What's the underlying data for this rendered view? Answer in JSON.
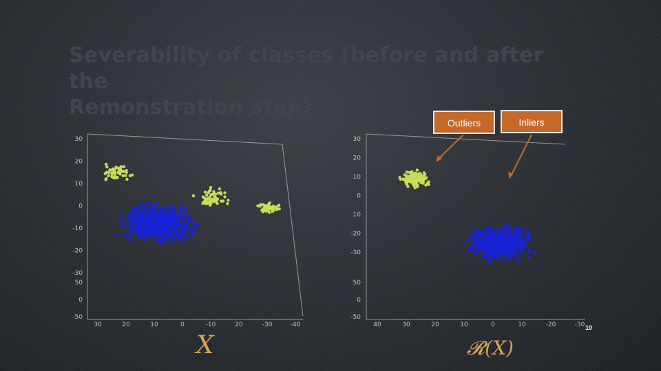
{
  "slide": {
    "title_line1": "Severability of classes (before and after the",
    "title_line2": "Remonstration step)",
    "callout_outliers": "Outliers",
    "callout_inliers": "Inliers",
    "label_left": "X",
    "label_right": "𝓡(X)",
    "page_number": "10"
  },
  "colors": {
    "inliers": "#1822d6",
    "outliers": "#c8dd58",
    "callout": "#c5692a",
    "math_label": "#d9a35c"
  },
  "chart_data": [
    {
      "type": "scatter",
      "name_hint": "before",
      "y_ticks": [
        "30",
        "20",
        "10",
        "0",
        "-10",
        "-20",
        "-30"
      ],
      "z_ticks": [
        "50",
        "0",
        "-50"
      ],
      "x_ticks": [
        "30",
        "20",
        "10",
        "0",
        "-10",
        "20",
        "-30",
        "-40"
      ],
      "series": [
        {
          "class": "inliers",
          "color": "#1822d6",
          "clusters": [
            {
              "cx": 10,
              "cy": -8,
              "spread": 12,
              "n": 520
            }
          ]
        },
        {
          "class": "outliers",
          "color": "#c8dd58",
          "clusters": [
            {
              "cx": 25,
              "cy": 18,
              "spread": 5,
              "n": 50
            },
            {
              "cx": -10,
              "cy": 5,
              "spread": 6,
              "n": 60
            },
            {
              "cx": -30,
              "cy": 0,
              "spread": 4,
              "n": 40
            }
          ]
        }
      ]
    },
    {
      "type": "scatter",
      "name_hint": "after",
      "y_ticks": [
        "30",
        "20",
        "10",
        "0",
        "10",
        "-20",
        "-30"
      ],
      "z_ticks": [
        "50",
        "0",
        "-50"
      ],
      "x_ticks": [
        "40",
        "30",
        "20",
        "10",
        "0",
        "10",
        "-20",
        "-30"
      ],
      "series": [
        {
          "class": "inliers",
          "color": "#1822d6",
          "clusters": [
            {
              "cx": -5,
              "cy": -15,
              "spread": 10,
              "n": 520
            }
          ]
        },
        {
          "class": "outliers",
          "color": "#c8dd58",
          "clusters": [
            {
              "cx": 25,
              "cy": 15,
              "spread": 5,
              "n": 130
            }
          ]
        }
      ]
    }
  ]
}
